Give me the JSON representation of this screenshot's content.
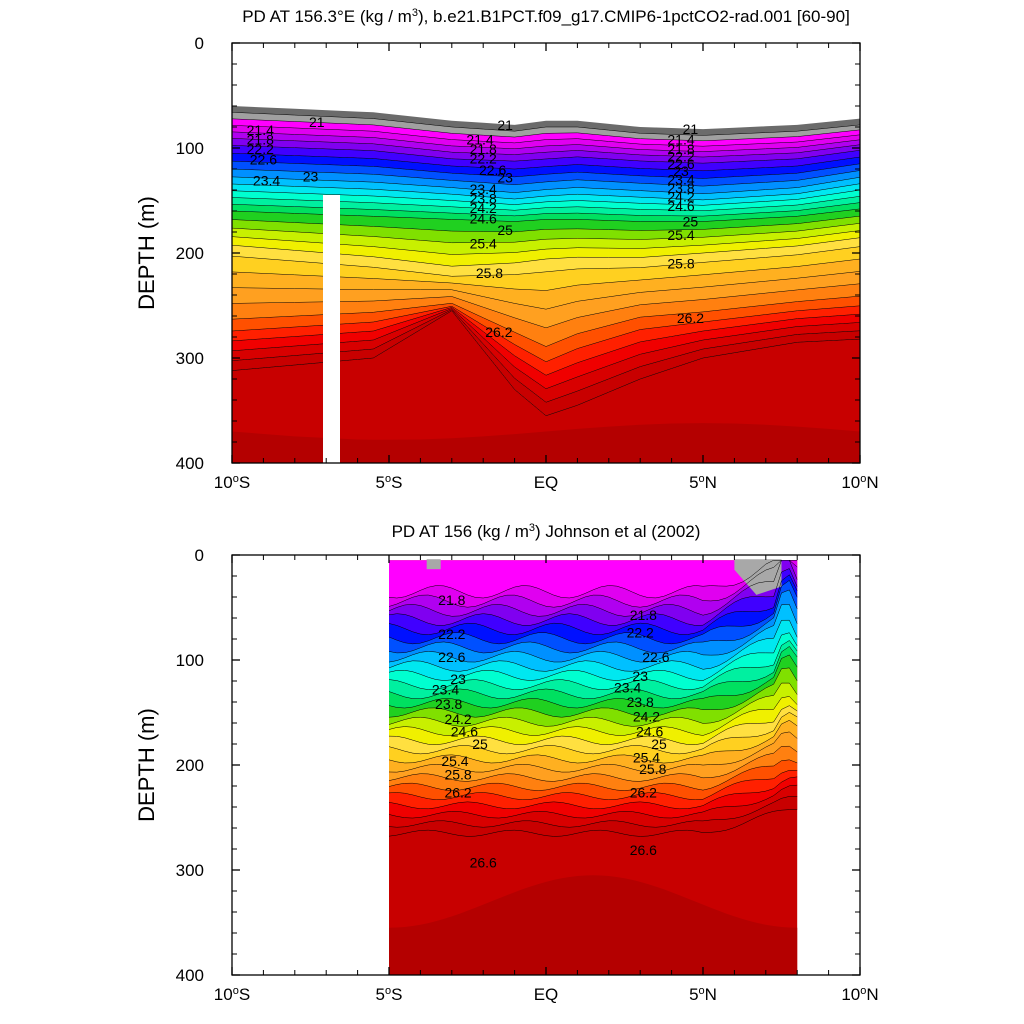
{
  "chart_data": [
    {
      "type": "contour",
      "title": "PD AT 156.3°E (kg / m3), b.e21.B1PCT.f09_g17.CMIP6-1pctCO2-rad.001 [60-90]",
      "ylabel": "DEPTH (m)",
      "ylim": [
        0,
        400
      ],
      "y_inverted": true,
      "xlim": [
        -10,
        10
      ],
      "x_ticks": [
        -10,
        -5,
        0,
        5,
        10
      ],
      "x_tick_labels": [
        "10°S",
        "5°S",
        "EQ",
        "5°N",
        "10°N"
      ],
      "y_ticks": [
        0,
        100,
        200,
        300,
        400
      ],
      "y_tick_labels": [
        "0",
        "100",
        "200",
        "300",
        "400"
      ],
      "contour_levels": [
        21,
        21.4,
        21.8,
        22.2,
        22.6,
        23,
        23.4,
        23.8,
        24.2,
        24.6,
        25,
        25.4,
        25.8,
        26.2,
        26.6
      ],
      "data_x": [
        -10,
        -5.5,
        -3,
        -1,
        0,
        1,
        3,
        5,
        8,
        10
      ],
      "isopycnal_depths": {
        "21": [
          66,
          72,
          80,
          84,
          80,
          80,
          86,
          88,
          84,
          78
        ],
        "22.2": [
          95,
          100,
          108,
          110,
          108,
          106,
          110,
          112,
          108,
          100
        ],
        "23.4": [
          130,
          135,
          140,
          145,
          142,
          140,
          143,
          146,
          140,
          130
        ],
        "24.6": [
          160,
          165,
          168,
          170,
          168,
          168,
          170,
          170,
          165,
          158
        ],
        "25.4": [
          198,
          210,
          220,
          216,
          212,
          210,
          210,
          205,
          198,
          190
        ],
        "26.2": [
          268,
          260,
          250,
          280,
          295,
          282,
          265,
          260,
          250,
          245
        ],
        "26.6": [
          312,
          300,
          255,
          330,
          355,
          345,
          320,
          300,
          285,
          282
        ]
      },
      "missing_data_columns": [
        {
          "x_from": -7.1,
          "x_to": -6.6,
          "y_from": 145,
          "y_to": 400
        }
      ],
      "contour_labels": [
        {
          "text": "21",
          "x": -7.3,
          "y": 75
        },
        {
          "text": "21.4",
          "x": -9.1,
          "y": 83
        },
        {
          "text": "21.8",
          "x": -9.1,
          "y": 92
        },
        {
          "text": "22.2",
          "x": -9.1,
          "y": 101
        },
        {
          "text": "22.6",
          "x": -9.0,
          "y": 111
        },
        {
          "text": "23.4",
          "x": -8.9,
          "y": 131
        },
        {
          "text": "23",
          "x": -7.5,
          "y": 127
        },
        {
          "text": "21",
          "x": -1.3,
          "y": 78
        },
        {
          "text": "21.4",
          "x": -2.1,
          "y": 92
        },
        {
          "text": "21.8",
          "x": -2.0,
          "y": 101
        },
        {
          "text": "22.2",
          "x": -2.0,
          "y": 110
        },
        {
          "text": "22.6",
          "x": -1.7,
          "y": 121
        },
        {
          "text": "23",
          "x": -1.3,
          "y": 128
        },
        {
          "text": "23.4",
          "x": -2.0,
          "y": 139
        },
        {
          "text": "23.8",
          "x": -2.0,
          "y": 148
        },
        {
          "text": "24.2",
          "x": -2.0,
          "y": 157
        },
        {
          "text": "24.6",
          "x": -2.0,
          "y": 167
        },
        {
          "text": "25",
          "x": -1.3,
          "y": 178
        },
        {
          "text": "25.4",
          "x": -2.0,
          "y": 191
        },
        {
          "text": "25.8",
          "x": -1.8,
          "y": 219
        },
        {
          "text": "26.2",
          "x": -1.5,
          "y": 275
        },
        {
          "text": "21",
          "x": 4.6,
          "y": 82
        },
        {
          "text": "21.4",
          "x": 4.3,
          "y": 92
        },
        {
          "text": "21.8",
          "x": 4.3,
          "y": 101
        },
        {
          "text": "22.2",
          "x": 4.3,
          "y": 108
        },
        {
          "text": "22.6",
          "x": 4.3,
          "y": 115
        },
        {
          "text": "23",
          "x": 4.3,
          "y": 122
        },
        {
          "text": "23.4",
          "x": 4.3,
          "y": 130
        },
        {
          "text": "23.8",
          "x": 4.3,
          "y": 138
        },
        {
          "text": "24.2",
          "x": 4.3,
          "y": 146
        },
        {
          "text": "24.6",
          "x": 4.3,
          "y": 155
        },
        {
          "text": "25",
          "x": 4.6,
          "y": 170
        },
        {
          "text": "25.4",
          "x": 4.3,
          "y": 183
        },
        {
          "text": "25.8",
          "x": 4.3,
          "y": 210
        },
        {
          "text": "26.2",
          "x": 4.6,
          "y": 262
        }
      ]
    },
    {
      "type": "contour",
      "title": "PD AT 156 (kg / m3) Johnson et al (2002)",
      "ylabel": "DEPTH (m)",
      "ylim": [
        0,
        400
      ],
      "y_inverted": true,
      "xlim": [
        -10,
        10
      ],
      "x_ticks": [
        -10,
        -5,
        0,
        5,
        10
      ],
      "x_tick_labels": [
        "10°S",
        "5°S",
        "EQ",
        "5°N",
        "10°N"
      ],
      "y_ticks": [
        0,
        100,
        200,
        300,
        400
      ],
      "y_tick_labels": [
        "0",
        "100",
        "200",
        "300",
        "400"
      ],
      "contour_levels": [
        21.8,
        22.2,
        22.6,
        23,
        23.4,
        23.8,
        24.2,
        24.6,
        25,
        25.4,
        25.8,
        26.2,
        26.6
      ],
      "data_xrange": [
        -5,
        8
      ],
      "contour_labels": [
        {
          "text": "21.8",
          "x": -3.0,
          "y": 43
        },
        {
          "text": "22.2",
          "x": -3.0,
          "y": 75
        },
        {
          "text": "22.6",
          "x": -3.0,
          "y": 97
        },
        {
          "text": "23",
          "x": -2.8,
          "y": 118
        },
        {
          "text": "23.4",
          "x": -3.2,
          "y": 128
        },
        {
          "text": "23.8",
          "x": -3.1,
          "y": 142
        },
        {
          "text": "24.2",
          "x": -2.8,
          "y": 156
        },
        {
          "text": "24.6",
          "x": -2.6,
          "y": 168
        },
        {
          "text": "25",
          "x": -2.1,
          "y": 180
        },
        {
          "text": "25.4",
          "x": -2.9,
          "y": 196
        },
        {
          "text": "25.8",
          "x": -2.8,
          "y": 209
        },
        {
          "text": "26.2",
          "x": -2.8,
          "y": 226
        },
        {
          "text": "26.6",
          "x": -2.0,
          "y": 293
        },
        {
          "text": "21.8",
          "x": 3.1,
          "y": 57
        },
        {
          "text": "22.2",
          "x": 3.0,
          "y": 74
        },
        {
          "text": "22.6",
          "x": 3.5,
          "y": 97
        },
        {
          "text": "23",
          "x": 3.0,
          "y": 115
        },
        {
          "text": "23.4",
          "x": 2.6,
          "y": 126
        },
        {
          "text": "23.8",
          "x": 3.0,
          "y": 140
        },
        {
          "text": "24.2",
          "x": 3.2,
          "y": 154
        },
        {
          "text": "24.6",
          "x": 3.3,
          "y": 168
        },
        {
          "text": "25",
          "x": 3.6,
          "y": 180
        },
        {
          "text": "25.4",
          "x": 3.2,
          "y": 193
        },
        {
          "text": "25.8",
          "x": 3.4,
          "y": 204
        },
        {
          "text": "26.2",
          "x": 3.1,
          "y": 226
        },
        {
          "text": "26.6",
          "x": 3.1,
          "y": 281
        }
      ]
    }
  ]
}
